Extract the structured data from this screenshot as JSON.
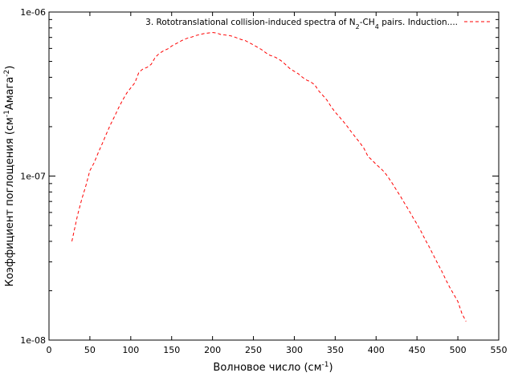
{
  "chart_data": {
    "type": "line",
    "xlabel_main": "Волновое число (см",
    "xlabel_sup": "-1",
    "xlabel_end": ")",
    "ylabel_main": "Коэффициент поглощения (см",
    "ylabel_sup1": "-1",
    "ylabel_mid": "Амага",
    "ylabel_sup2": "-2",
    "ylabel_end": ")",
    "x_ticks": [
      "0",
      "50",
      "100",
      "150",
      "200",
      "250",
      "300",
      "350",
      "400",
      "450",
      "500",
      "550"
    ],
    "y_ticks": [
      "1e-08",
      "1e-07",
      "1e-06"
    ],
    "xlim": [
      0,
      550
    ],
    "ylim": [
      1e-08,
      1e-06
    ],
    "y_scale": "log",
    "grid": false,
    "legend_position": "top-right",
    "series": [
      {
        "legend_parts": [
          "3. Rototranslational collision-induced spectra of N",
          "2",
          "-CH",
          "4",
          " pairs. Induction...."
        ],
        "color": "#ff0000",
        "dash": "dashed",
        "x": [
          28,
          35,
          40,
          45,
          50,
          55,
          60,
          65,
          70,
          75,
          80,
          85,
          90,
          95,
          100,
          105,
          110,
          115,
          120,
          125,
          130,
          135,
          140,
          145,
          150,
          155,
          160,
          165,
          170,
          175,
          180,
          185,
          190,
          195,
          200,
          205,
          210,
          215,
          220,
          225,
          230,
          235,
          240,
          245,
          250,
          255,
          260,
          265,
          270,
          275,
          280,
          285,
          290,
          295,
          300,
          305,
          310,
          315,
          320,
          325,
          330,
          335,
          340,
          345,
          350,
          355,
          360,
          365,
          370,
          375,
          380,
          385,
          390,
          395,
          400,
          405,
          410,
          415,
          420,
          425,
          430,
          435,
          440,
          445,
          450,
          455,
          460,
          465,
          470,
          475,
          480,
          485,
          490,
          495,
          500,
          505,
          510
        ],
        "y": [
          4e-08,
          5.8e-08,
          7.2e-08,
          8.7e-08,
          1.08e-07,
          1.2e-07,
          1.38e-07,
          1.57e-07,
          1.8e-07,
          2.05e-07,
          2.3e-07,
          2.6e-07,
          2.9e-07,
          3.2e-07,
          3.45e-07,
          3.7e-07,
          4.3e-07,
          4.5e-07,
          4.6e-07,
          4.8e-07,
          5.3e-07,
          5.6e-07,
          5.8e-07,
          5.95e-07,
          6.2e-07,
          6.4e-07,
          6.6e-07,
          6.8e-07,
          6.95e-07,
          7.05e-07,
          7.2e-07,
          7.3e-07,
          7.4e-07,
          7.45e-07,
          7.5e-07,
          7.45e-07,
          7.3e-07,
          7.25e-07,
          7.2e-07,
          7.1e-07,
          6.95e-07,
          6.8e-07,
          6.7e-07,
          6.5e-07,
          6.3e-07,
          6.1e-07,
          5.9e-07,
          5.65e-07,
          5.45e-07,
          5.35e-07,
          5.2e-07,
          5e-07,
          4.75e-07,
          4.5e-07,
          4.35e-07,
          4.2e-07,
          4e-07,
          3.85e-07,
          3.75e-07,
          3.6e-07,
          3.3e-07,
          3.1e-07,
          2.9e-07,
          2.65e-07,
          2.45e-07,
          2.3e-07,
          2.15e-07,
          2e-07,
          1.85e-07,
          1.72e-07,
          1.6e-07,
          1.48e-07,
          1.32e-07,
          1.25e-07,
          1.18e-07,
          1.12e-07,
          1.06e-07,
          9.8e-08,
          9e-08,
          8.2e-08,
          7.5e-08,
          6.8e-08,
          6.2e-08,
          5.6e-08,
          5.1e-08,
          4.6e-08,
          4.1e-08,
          3.7e-08,
          3.3e-08,
          2.95e-08,
          2.65e-08,
          2.35e-08,
          2.1e-08,
          1.9e-08,
          1.72e-08,
          1.45e-08,
          1.3e-08
        ]
      }
    ]
  }
}
